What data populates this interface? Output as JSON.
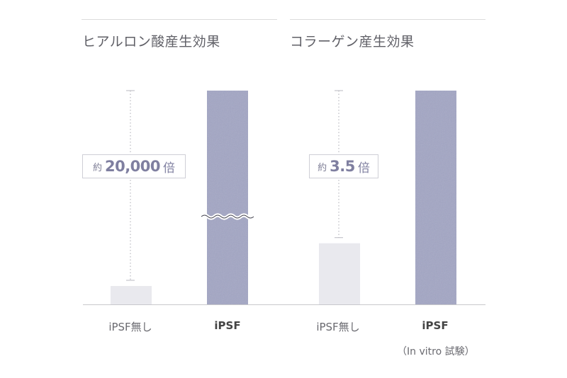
{
  "panels": [
    {
      "title": "ヒアルロン酸産生効果",
      "multiplier": {
        "prefix": "約",
        "value": "20,000",
        "suffix": "倍"
      }
    },
    {
      "title": "コラーゲン産生効果",
      "multiplier": {
        "prefix": "約",
        "value": "3.5",
        "suffix": "倍"
      }
    }
  ],
  "note": "（In vitro 試験）",
  "colors": {
    "control": "#e9e9ee",
    "ipsf": "#a3a6c4",
    "axis": "#c8c8cc",
    "dotted": "#b9b9c0"
  },
  "chart_data": [
    {
      "type": "bar",
      "title": "ヒアルロン酸産生効果",
      "categories": [
        "iPSF無し",
        "iPSF"
      ],
      "values": [
        1,
        20000
      ],
      "axis_break": true,
      "annotation": "約20,000倍"
    },
    {
      "type": "bar",
      "title": "コラーゲン産生効果",
      "categories": [
        "iPSF無し",
        "iPSF"
      ],
      "values": [
        1,
        3.5
      ],
      "annotation": "約3.5倍"
    }
  ]
}
